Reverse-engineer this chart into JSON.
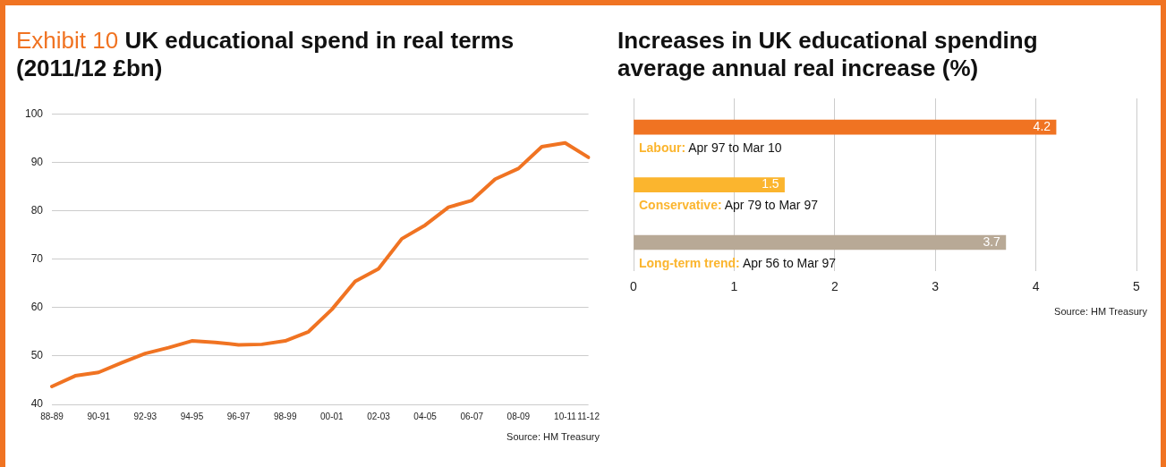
{
  "chart_data": [
    {
      "type": "line",
      "title": "Exhibit 10 UK educational spend in real terms (2011/12 £bn)",
      "categories": [
        "88-89",
        null,
        "90-91",
        null,
        "92-93",
        null,
        "94-95",
        null,
        "96-97",
        null,
        "98-99",
        null,
        "00-01",
        null,
        "02-03",
        null,
        "04-05",
        null,
        "06-07",
        null,
        "08-09",
        null,
        "10-11",
        "11-12"
      ],
      "values": [
        43.7,
        45.9,
        46.6,
        48.6,
        50.5,
        51.7,
        53.1,
        52.8,
        52.3,
        52.4,
        53.1,
        55.0,
        59.6,
        65.4,
        68.0,
        74.2,
        77.0,
        80.7,
        82.1,
        86.5,
        88.7,
        93.2,
        94.0,
        91.0
      ],
      "color": "#f07322",
      "ylim": [
        40,
        100
      ],
      "yticks": [
        40,
        50,
        60,
        70,
        80,
        90,
        100
      ],
      "grid": "y",
      "annotations": [
        "Source: HM Treasury"
      ]
    },
    {
      "type": "bar",
      "orientation": "horizontal",
      "title": "Increases in UK educational spending",
      "subtitle": "average annual real increase (%)",
      "categories": [
        "Labour: Apr 97 to Mar 10",
        "Conservative: Apr 79 to Mar 97",
        "Long-term trend: Apr 56 to Mar 97"
      ],
      "values": [
        4.2,
        1.5,
        3.7
      ],
      "colors": [
        "#f07322",
        "#fbb52e",
        "#b8a996"
      ],
      "xlim": [
        0,
        5
      ],
      "xticks": [
        0,
        1,
        2,
        3,
        4,
        5
      ],
      "grid": "x",
      "data_labels": true,
      "annotations": [
        "Source: HM Treasury"
      ]
    }
  ]
}
